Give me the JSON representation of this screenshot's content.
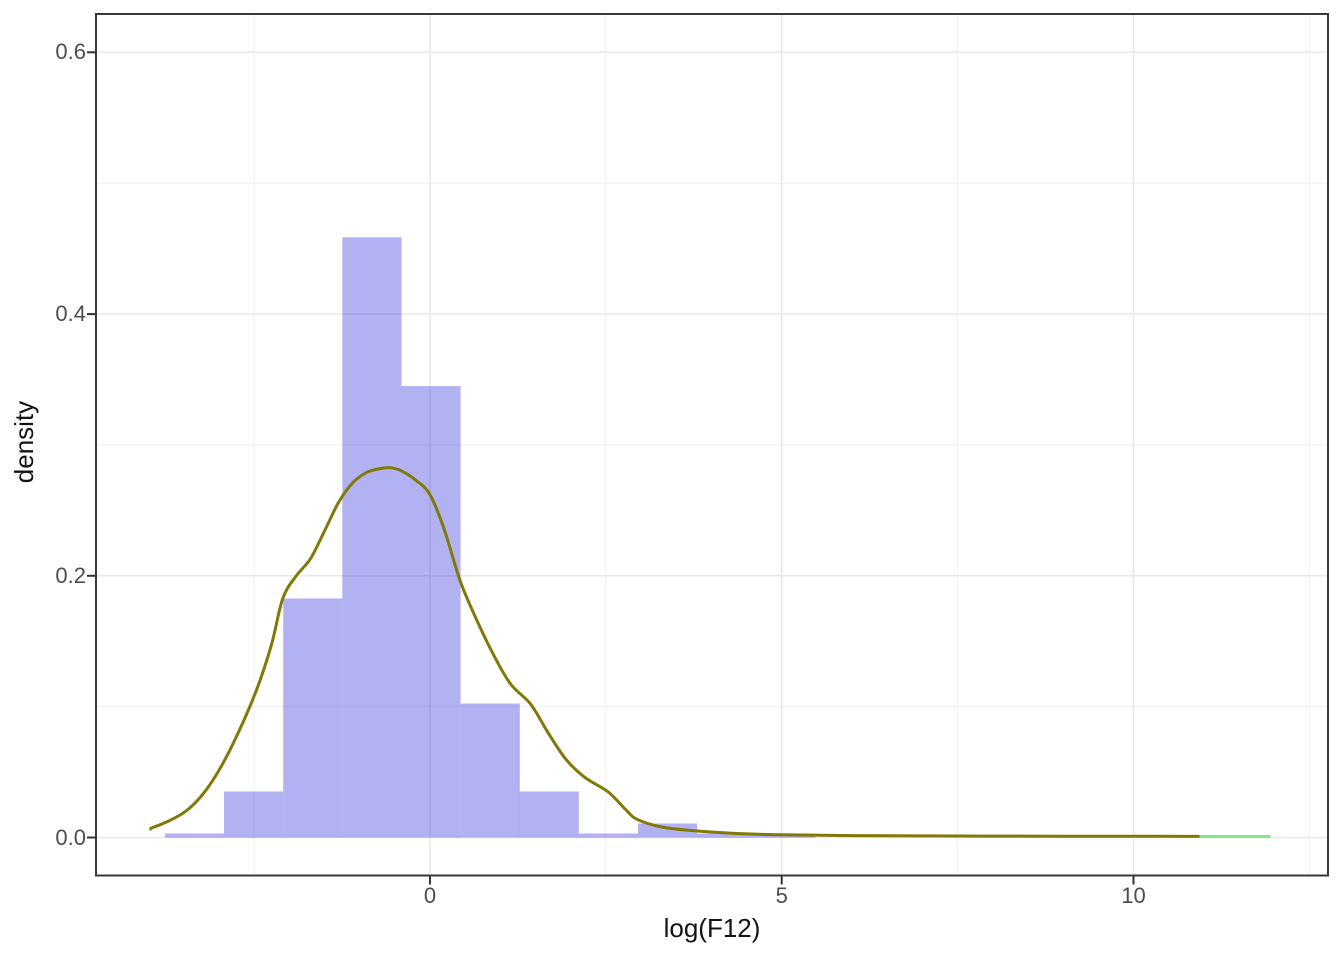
{
  "chart_data": {
    "type": "histogram+density-line",
    "title": "",
    "xlabel": "log(F12)",
    "ylabel": "density",
    "xlim": [
      -4.747,
      12.765
    ],
    "ylim": [
      -0.029,
      0.6293
    ],
    "grid": {
      "shown": true,
      "major_x": [
        0,
        5,
        10
      ],
      "minor_x": [
        -2.5,
        2.5,
        7.5,
        12.5
      ],
      "major_y": [
        0.0,
        0.2,
        0.4,
        0.6
      ],
      "minor_y": [
        0.1,
        0.3,
        0.5
      ]
    },
    "x_ticks": {
      "values": [
        0,
        5,
        10
      ],
      "labels": [
        "0",
        "5",
        "10"
      ]
    },
    "y_ticks": {
      "values": [
        0.0,
        0.2,
        0.4,
        0.6
      ],
      "labels": [
        "0.0",
        "0.2",
        "0.4",
        "0.6"
      ]
    },
    "histogram": {
      "fill_rgba": "rgba(0,0,215,0.30)",
      "fill_hex_on_white": "#b2b2f3",
      "binwidth": 0.8405,
      "bins": [
        {
          "x0": -3.767,
          "x1": -2.927,
          "density": 0.0031
        },
        {
          "x0": -2.927,
          "x1": -2.086,
          "density": 0.0352
        },
        {
          "x0": -2.086,
          "x1": -1.246,
          "density": 0.1827
        },
        {
          "x0": -1.246,
          "x1": -0.405,
          "density": 0.4587
        },
        {
          "x0": -0.405,
          "x1": 0.435,
          "density": 0.345
        },
        {
          "x0": 0.435,
          "x1": 1.276,
          "density": 0.1024
        },
        {
          "x0": 1.276,
          "x1": 2.116,
          "density": 0.0352
        },
        {
          "x0": 2.116,
          "x1": 2.957,
          "density": 0.0031
        },
        {
          "x0": 2.957,
          "x1": 3.797,
          "density": 0.0107
        },
        {
          "x0": 3.797,
          "x1": 4.638,
          "density": 0.0031
        },
        {
          "x0": 4.638,
          "x1": 5.478,
          "density": 0.0031
        }
      ]
    },
    "density_curve": {
      "color": "#827806",
      "stroke_width": 3,
      "points": [
        [
          -3.97,
          0.007
        ],
        [
          -3.7,
          0.013
        ],
        [
          -3.45,
          0.021
        ],
        [
          -3.2,
          0.035
        ],
        [
          -2.95,
          0.056
        ],
        [
          -2.7,
          0.083
        ],
        [
          -2.45,
          0.115
        ],
        [
          -2.25,
          0.148
        ],
        [
          -2.09,
          0.183
        ],
        [
          -1.9,
          0.2
        ],
        [
          -1.7,
          0.213
        ],
        [
          -1.5,
          0.234
        ],
        [
          -1.3,
          0.256
        ],
        [
          -1.1,
          0.271
        ],
        [
          -0.9,
          0.279
        ],
        [
          -0.7,
          0.282
        ],
        [
          -0.55,
          0.2825
        ],
        [
          -0.4,
          0.28
        ],
        [
          -0.2,
          0.273
        ],
        [
          0.0,
          0.262
        ],
        [
          0.2,
          0.236
        ],
        [
          0.43,
          0.196
        ],
        [
          0.65,
          0.168
        ],
        [
          0.9,
          0.14
        ],
        [
          1.15,
          0.117
        ],
        [
          1.43,
          0.102
        ],
        [
          1.68,
          0.08
        ],
        [
          1.93,
          0.06
        ],
        [
          2.2,
          0.046
        ],
        [
          2.53,
          0.035
        ],
        [
          2.79,
          0.021
        ],
        [
          2.94,
          0.014
        ],
        [
          3.3,
          0.008
        ],
        [
          3.8,
          0.005
        ],
        [
          4.3,
          0.0033
        ],
        [
          5.0,
          0.0021
        ],
        [
          6.0,
          0.0015
        ],
        [
          7.5,
          0.0012
        ],
        [
          9.0,
          0.001
        ],
        [
          10.3,
          0.00095
        ],
        [
          10.92,
          0.0009
        ]
      ]
    },
    "green_segments": {
      "color": "#87e887",
      "stroke_width": 3,
      "segments": [
        {
          "x0": 10.92,
          "x1": 11.95,
          "y": 0.0008
        },
        {
          "x0": -3.99,
          "x1": -3.95,
          "y": 0.006
        }
      ]
    },
    "style_colors": {
      "panel_background": "#ffffff",
      "panel_border": "#3a3a3a",
      "grid_major": "#e8e8e8",
      "grid_minor": "#f1f1f1",
      "tick_mark": "#333333",
      "tick_label": "#4d4d4d",
      "axis_title": "#141414"
    }
  }
}
